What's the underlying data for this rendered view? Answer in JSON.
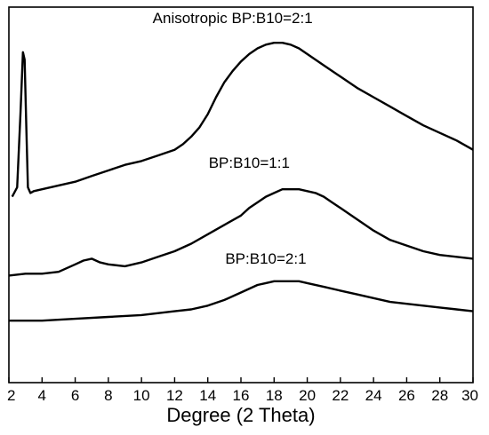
{
  "chart_data": {
    "type": "line",
    "title": "",
    "xlabel": "Degree (2 Theta)",
    "ylabel": "",
    "xlim": [
      2,
      30
    ],
    "ylim": [
      0,
      100
    ],
    "xticks": [
      "2",
      "4",
      "6",
      "8",
      "10",
      "12",
      "14",
      "16",
      "18",
      "20",
      "22",
      "24",
      "26",
      "28",
      "30"
    ],
    "grid": false,
    "y_axis_visible": false,
    "line_color": "#000000",
    "series": [
      {
        "name": "Anisotropic BP:B10=2:1",
        "x": [
          2.2,
          2.5,
          2.7,
          2.85,
          2.95,
          3.05,
          3.15,
          3.3,
          3.5,
          4,
          5,
          6,
          7,
          8,
          9,
          10,
          11,
          12,
          12.5,
          13,
          13.5,
          14,
          14.5,
          15,
          15.5,
          16,
          16.5,
          17,
          17.5,
          18,
          18.5,
          19,
          19.5,
          20,
          20.5,
          21,
          22,
          23,
          24,
          25,
          26,
          27,
          28,
          29,
          30
        ],
        "y": [
          49.5,
          52,
          72,
          88,
          86,
          68,
          52,
          50.5,
          51,
          51.5,
          52.5,
          53.5,
          55,
          56.5,
          58,
          59,
          60.5,
          62,
          63.5,
          65.5,
          68,
          71.5,
          76,
          80,
          83,
          85.5,
          87.5,
          89,
          90,
          90.5,
          90.5,
          90,
          89,
          87.5,
          86,
          84.5,
          81.5,
          78.5,
          76,
          73.5,
          71,
          68.5,
          66.5,
          64.5,
          62
        ]
      },
      {
        "name": "BP:B10=1:1",
        "x": [
          2,
          3,
          4,
          5,
          6,
          6.5,
          7,
          7.5,
          8,
          9,
          10,
          11,
          12,
          13,
          14,
          15,
          16,
          16.5,
          17,
          17.5,
          18,
          18.5,
          19,
          19.5,
          20,
          20.5,
          21,
          21.5,
          22,
          23,
          24,
          25,
          26,
          27,
          28,
          29,
          30
        ],
        "y": [
          28.5,
          29,
          29,
          29.5,
          31.5,
          32.5,
          33,
          32,
          31.5,
          31,
          32,
          33.5,
          35,
          37,
          39.5,
          42,
          44.5,
          46.5,
          48,
          49.5,
          50.5,
          51.5,
          51.5,
          51.5,
          51,
          50.5,
          49.5,
          48,
          46.5,
          43.5,
          40.5,
          38,
          36.5,
          35,
          34,
          33.5,
          33
        ]
      },
      {
        "name": "BP:B10=2:1",
        "x": [
          2,
          3,
          4,
          6,
          8,
          10,
          12,
          13,
          14,
          15,
          16,
          17,
          17.5,
          18,
          18.5,
          19,
          19.5,
          20,
          21,
          22,
          23,
          24,
          25,
          26,
          27,
          28,
          29,
          30
        ],
        "y": [
          16.5,
          16.5,
          16.5,
          17,
          17.5,
          18,
          19,
          19.5,
          20.5,
          22,
          24,
          26,
          26.5,
          27,
          27,
          27,
          27,
          26.5,
          25.5,
          24.5,
          23.5,
          22.5,
          21.5,
          21,
          20.5,
          20,
          19.5,
          19
        ]
      }
    ],
    "annotations": [
      {
        "series": 0,
        "text": "Anisotropic BP:B10=2:1"
      },
      {
        "series": 1,
        "text": "BP:B10=1:1"
      },
      {
        "series": 2,
        "text": "BP:B10=2:1"
      }
    ]
  }
}
